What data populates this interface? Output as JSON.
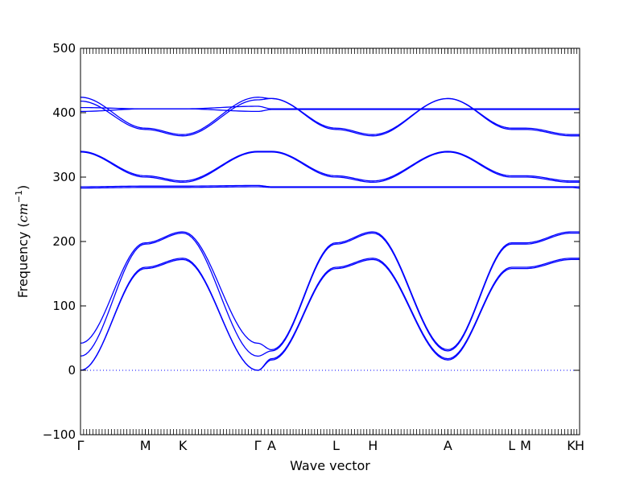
{
  "chart_data": {
    "type": "line",
    "title": "",
    "xlabel": "Wave vector",
    "ylabel_text": "Frequency ",
    "ylabel_unit_base": "cm",
    "ylabel_unit_exp": "−1",
    "ylim": [
      -100,
      500
    ],
    "yticks": [
      -100,
      0,
      100,
      200,
      300,
      400,
      500
    ],
    "line_color": "#0000ff",
    "zero_line_color": "#0000ff",
    "segments": [
      0,
      0.13,
      0.205,
      0.355,
      0.383,
      0.512,
      0.586,
      0.736,
      0.864,
      0.892,
      0.983,
      1.0
    ],
    "xtick_labels": [
      "Γ",
      "M",
      "K",
      "Γ",
      "A",
      "L",
      "H",
      "A",
      "L",
      "M",
      "K",
      "H"
    ],
    "series": [
      {
        "points": [
          [
            0,
            0
          ],
          [
            0.13,
            158
          ],
          [
            0.205,
            172
          ],
          [
            0.355,
            0
          ],
          [
            0.383,
            16
          ],
          [
            0.512,
            158
          ],
          [
            0.586,
            172
          ],
          [
            0.736,
            16
          ],
          [
            0.864,
            158
          ],
          [
            0.892,
            158
          ],
          [
            0.983,
            172
          ],
          [
            1.0,
            172
          ]
        ]
      },
      {
        "points": [
          [
            0,
            0
          ],
          [
            0.13,
            160
          ],
          [
            0.205,
            174
          ],
          [
            0.355,
            0
          ],
          [
            0.383,
            18
          ],
          [
            0.512,
            160
          ],
          [
            0.586,
            174
          ],
          [
            0.736,
            18
          ],
          [
            0.864,
            160
          ],
          [
            0.892,
            160
          ],
          [
            0.983,
            174
          ],
          [
            1.0,
            174
          ]
        ]
      },
      {
        "points": [
          [
            0,
            22
          ],
          [
            0.13,
            196
          ],
          [
            0.205,
            213
          ],
          [
            0.355,
            22
          ],
          [
            0.383,
            30
          ],
          [
            0.512,
            196
          ],
          [
            0.586,
            213
          ],
          [
            0.736,
            30
          ],
          [
            0.864,
            196
          ],
          [
            0.892,
            196
          ],
          [
            0.983,
            213
          ],
          [
            1.0,
            213
          ]
        ]
      },
      {
        "points": [
          [
            0,
            42
          ],
          [
            0.13,
            198
          ],
          [
            0.205,
            215
          ],
          [
            0.355,
            42
          ],
          [
            0.383,
            32
          ],
          [
            0.512,
            198
          ],
          [
            0.586,
            215
          ],
          [
            0.736,
            32
          ],
          [
            0.864,
            198
          ],
          [
            0.892,
            198
          ],
          [
            0.983,
            215
          ],
          [
            1.0,
            215
          ]
        ]
      },
      {
        "points": [
          [
            0,
            283
          ],
          [
            0.13,
            284
          ],
          [
            0.205,
            284
          ],
          [
            0.355,
            285
          ],
          [
            0.383,
            284
          ],
          [
            0.512,
            284
          ],
          [
            0.586,
            284
          ],
          [
            0.736,
            284
          ],
          [
            0.864,
            284
          ],
          [
            0.892,
            284
          ],
          [
            0.983,
            284
          ],
          [
            1.0,
            283
          ]
        ]
      },
      {
        "points": [
          [
            0,
            285
          ],
          [
            0.13,
            286
          ],
          [
            0.205,
            286
          ],
          [
            0.355,
            287
          ],
          [
            0.383,
            285
          ],
          [
            0.512,
            285
          ],
          [
            0.586,
            285
          ],
          [
            0.736,
            285
          ],
          [
            0.864,
            285
          ],
          [
            0.892,
            285
          ],
          [
            0.983,
            285
          ],
          [
            1.0,
            285
          ]
        ]
      },
      {
        "points": [
          [
            0,
            339
          ],
          [
            0.13,
            300
          ],
          [
            0.205,
            292
          ],
          [
            0.355,
            339
          ],
          [
            0.383,
            339
          ],
          [
            0.512,
            300
          ],
          [
            0.586,
            292
          ],
          [
            0.736,
            339
          ],
          [
            0.864,
            300
          ],
          [
            0.892,
            300
          ],
          [
            0.983,
            292
          ],
          [
            1.0,
            292
          ]
        ]
      },
      {
        "points": [
          [
            0,
            340
          ],
          [
            0.13,
            302
          ],
          [
            0.205,
            294
          ],
          [
            0.355,
            340
          ],
          [
            0.383,
            340
          ],
          [
            0.512,
            302
          ],
          [
            0.586,
            294
          ],
          [
            0.736,
            340
          ],
          [
            0.864,
            302
          ],
          [
            0.892,
            302
          ],
          [
            0.983,
            294
          ],
          [
            1.0,
            294
          ]
        ]
      },
      {
        "points": [
          [
            0,
            402
          ],
          [
            0.13,
            406
          ],
          [
            0.205,
            406
          ],
          [
            0.355,
            402
          ],
          [
            0.383,
            405
          ],
          [
            0.512,
            405
          ],
          [
            0.586,
            405
          ],
          [
            0.736,
            405
          ],
          [
            0.864,
            405
          ],
          [
            0.892,
            405
          ],
          [
            0.983,
            405
          ],
          [
            1.0,
            405
          ]
        ]
      },
      {
        "points": [
          [
            0,
            408
          ],
          [
            0.13,
            406
          ],
          [
            0.205,
            406
          ],
          [
            0.355,
            410
          ],
          [
            0.383,
            406
          ],
          [
            0.512,
            406
          ],
          [
            0.586,
            406
          ],
          [
            0.736,
            406
          ],
          [
            0.864,
            406
          ],
          [
            0.892,
            406
          ],
          [
            0.983,
            406
          ],
          [
            1.0,
            406
          ]
        ]
      },
      {
        "points": [
          [
            0,
            418
          ],
          [
            0.13,
            374
          ],
          [
            0.205,
            364
          ],
          [
            0.355,
            420
          ],
          [
            0.383,
            422
          ],
          [
            0.512,
            374
          ],
          [
            0.586,
            364
          ],
          [
            0.736,
            422
          ],
          [
            0.864,
            374
          ],
          [
            0.892,
            374
          ],
          [
            0.983,
            364
          ],
          [
            1.0,
            364
          ]
        ]
      },
      {
        "points": [
          [
            0,
            424
          ],
          [
            0.13,
            376
          ],
          [
            0.205,
            366
          ],
          [
            0.355,
            424
          ],
          [
            0.383,
            422
          ],
          [
            0.512,
            376
          ],
          [
            0.586,
            366
          ],
          [
            0.736,
            422
          ],
          [
            0.864,
            376
          ],
          [
            0.892,
            376
          ],
          [
            0.983,
            366
          ],
          [
            1.0,
            366
          ]
        ]
      }
    ]
  }
}
